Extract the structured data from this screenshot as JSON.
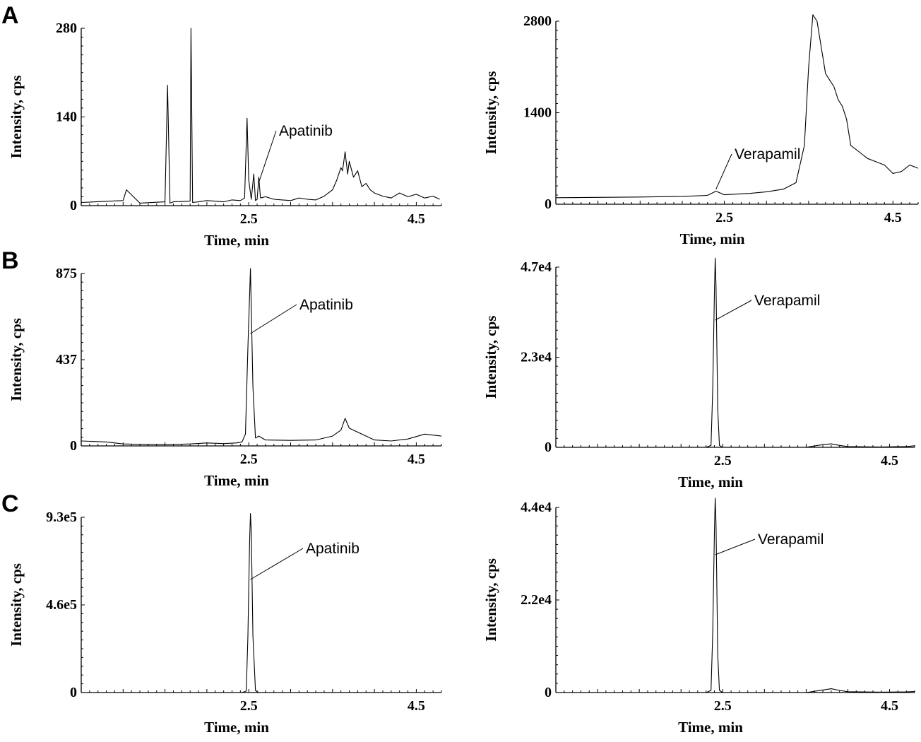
{
  "panels": [
    "A",
    "B",
    "C"
  ],
  "chart_data": [
    {
      "type": "line",
      "panel": "A",
      "compound": "Apatinib",
      "xlabel": "Time, min",
      "ylabel": "Intensity, cps",
      "xlim": [
        0.5,
        4.8
      ],
      "ylim": [
        0,
        280
      ],
      "xticks": [
        "2.5",
        "4.5"
      ],
      "yticks": [
        "0",
        "140",
        "280"
      ],
      "annotation": "Apatinib",
      "peak_time": 2.62,
      "series": [
        {
          "x": [
            0.5,
            1.0,
            1.04,
            1.2,
            1.5,
            1.53,
            1.56,
            1.6,
            1.8,
            1.81,
            1.83,
            1.9,
            2.0,
            2.1,
            2.2,
            2.3,
            2.4,
            2.45,
            2.48,
            2.5,
            2.53,
            2.56,
            2.58,
            2.6,
            2.62,
            2.64,
            2.7,
            2.8,
            2.9,
            3.0,
            3.1,
            3.2,
            3.3,
            3.4,
            3.5,
            3.55,
            3.6,
            3.62,
            3.65,
            3.68,
            3.7,
            3.75,
            3.8,
            3.85,
            3.9,
            3.95,
            4.0,
            4.1,
            4.2,
            4.3,
            4.4,
            4.5,
            4.6,
            4.7,
            4.78
          ],
          "y": [
            5,
            8,
            25,
            4,
            6,
            190,
            4,
            6,
            7,
            280,
            5,
            6,
            8,
            7,
            6,
            9,
            8,
            12,
            138,
            40,
            10,
            50,
            8,
            10,
            45,
            12,
            14,
            10,
            9,
            8,
            12,
            10,
            9,
            15,
            25,
            40,
            60,
            55,
            85,
            50,
            70,
            45,
            55,
            30,
            35,
            25,
            20,
            15,
            12,
            20,
            14,
            18,
            12,
            15,
            10
          ]
        }
      ]
    },
    {
      "type": "line",
      "panel": "A",
      "compound": "Verapamil",
      "xlabel": "Time, min",
      "ylabel": "Intensity, cps",
      "xlim": [
        0.5,
        4.8
      ],
      "ylim": [
        0,
        2800
      ],
      "xticks": [
        "2.5",
        "4.5"
      ],
      "yticks": [
        "0",
        "1400",
        "2800"
      ],
      "annotation": "Verapamil",
      "peak_time": 2.4,
      "series": [
        {
          "x": [
            0.5,
            1.0,
            1.5,
            2.0,
            2.3,
            2.4,
            2.5,
            2.8,
            3.0,
            3.2,
            3.35,
            3.45,
            3.5,
            3.55,
            3.6,
            3.65,
            3.7,
            3.75,
            3.8,
            3.85,
            3.9,
            3.95,
            4.0,
            4.1,
            4.2,
            4.3,
            4.4,
            4.5,
            4.6,
            4.7,
            4.8
          ],
          "y": [
            100,
            105,
            110,
            120,
            135,
            200,
            145,
            165,
            190,
            230,
            330,
            900,
            2100,
            2900,
            2800,
            2400,
            2000,
            1900,
            1800,
            1600,
            1500,
            1300,
            900,
            800,
            700,
            650,
            600,
            470,
            500,
            600,
            550
          ]
        }
      ]
    },
    {
      "type": "line",
      "panel": "B",
      "compound": "Apatinib",
      "xlabel": "Time, min",
      "ylabel": "Intensity, cps",
      "xlim": [
        0.5,
        4.8
      ],
      "ylim": [
        0,
        875
      ],
      "xticks": [
        "2.5",
        "4.5"
      ],
      "yticks": [
        "0",
        "437",
        "875"
      ],
      "annotation": "Apatinib",
      "peak_time": 2.52,
      "series": [
        {
          "x": [
            0.5,
            0.8,
            1.0,
            1.2,
            1.5,
            1.8,
            2.0,
            2.2,
            2.35,
            2.42,
            2.46,
            2.49,
            2.52,
            2.55,
            2.58,
            2.62,
            2.7,
            3.0,
            3.3,
            3.5,
            3.6,
            3.65,
            3.7,
            3.8,
            3.9,
            4.0,
            4.2,
            4.4,
            4.6,
            4.8
          ],
          "y": [
            25,
            20,
            10,
            8,
            6,
            10,
            15,
            12,
            15,
            20,
            60,
            500,
            900,
            300,
            40,
            50,
            30,
            28,
            30,
            50,
            80,
            140,
            90,
            70,
            50,
            30,
            25,
            35,
            60,
            50
          ]
        }
      ]
    },
    {
      "type": "line",
      "panel": "B",
      "compound": "Verapamil",
      "xlabel": "Time, min",
      "ylabel": "Intensity, cps",
      "xlim": [
        0.5,
        4.8
      ],
      "ylim": [
        0,
        47000
      ],
      "xticks": [
        "2.5",
        "4.5"
      ],
      "yticks": [
        "0",
        "2.3e4",
        "4.7e4"
      ],
      "annotation": "Verapamil",
      "peak_time": 2.41,
      "series": [
        {
          "x": [
            0.5,
            2.3,
            2.36,
            2.38,
            2.4,
            2.41,
            2.42,
            2.44,
            2.46,
            2.5,
            3.5,
            3.7,
            3.8,
            3.9,
            4.0,
            4.4,
            4.7,
            4.8
          ],
          "y": [
            0,
            0,
            500,
            15000,
            40000,
            49500,
            42000,
            10000,
            500,
            0,
            0,
            700,
            900,
            500,
            200,
            100,
            200,
            400
          ]
        }
      ]
    },
    {
      "type": "line",
      "panel": "C",
      "compound": "Apatinib",
      "xlabel": "Time, min",
      "ylabel": "Intensity, cps",
      "xlim": [
        0.5,
        4.8
      ],
      "ylim": [
        0,
        930000
      ],
      "xticks": [
        "2.5",
        "4.5"
      ],
      "yticks": [
        "0",
        "4.6e5",
        "9.3e5"
      ],
      "annotation": "Apatinib",
      "peak_time": 2.52,
      "series": [
        {
          "x": [
            0.5,
            2.42,
            2.47,
            2.49,
            2.51,
            2.52,
            2.53,
            2.55,
            2.58,
            2.62,
            4.8
          ],
          "y": [
            0,
            0,
            8000,
            300000,
            800000,
            950000,
            850000,
            300000,
            10000,
            0,
            0
          ]
        }
      ]
    },
    {
      "type": "line",
      "panel": "C",
      "compound": "Verapamil",
      "xlabel": "Time, min",
      "ylabel": "Intensity, cps",
      "xlim": [
        0.5,
        4.8
      ],
      "ylim": [
        0,
        44000
      ],
      "xticks": [
        "2.5",
        "4.5"
      ],
      "yticks": [
        "0",
        "2.2e4",
        "4.4e4"
      ],
      "annotation": "Verapamil",
      "peak_time": 2.41,
      "series": [
        {
          "x": [
            0.5,
            2.3,
            2.36,
            2.38,
            2.4,
            2.41,
            2.42,
            2.44,
            2.46,
            2.5,
            3.5,
            3.7,
            3.8,
            3.9,
            4.0,
            4.4,
            4.7,
            4.8
          ],
          "y": [
            0,
            0,
            500,
            14000,
            38000,
            46500,
            40000,
            9000,
            500,
            0,
            0,
            600,
            900,
            500,
            200,
            100,
            150,
            250
          ]
        }
      ]
    }
  ]
}
